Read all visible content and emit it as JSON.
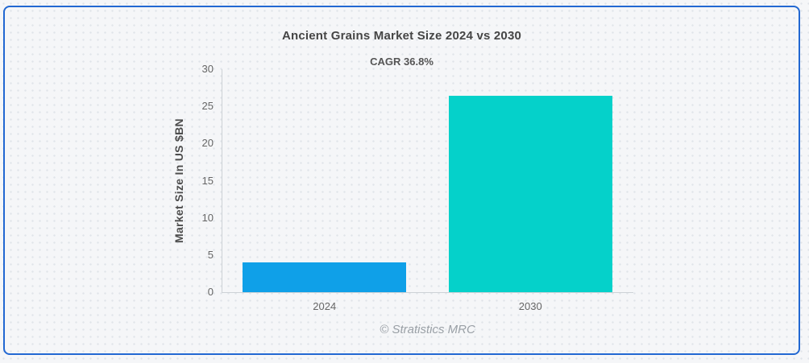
{
  "chart_data": {
    "type": "bar",
    "title": "Ancient Grains Market Size 2024 vs 2030",
    "subtitle": "CAGR 36.8%",
    "categories": [
      "2024",
      "2030"
    ],
    "values": [
      4.0,
      26.4
    ],
    "bar_colors": [
      "#0fa0e8",
      "#05d1ca"
    ],
    "xlabel": "",
    "ylabel": "Market Size In US $BN",
    "ylim": [
      0,
      30
    ],
    "ytick_step": 5,
    "grid": false,
    "legend": "none"
  },
  "footer": {
    "credit": "© Stratistics MRC"
  },
  "colors": {
    "card_border": "#2268d2",
    "axis_line": "#cdd2d6",
    "title_text": "#454545",
    "subtitle_text": "#555555",
    "tick_text": "#666666",
    "footer_text": "#9aa0a6",
    "page_background": "#f5f6f8",
    "pattern_dot": "#e0e4e9"
  }
}
